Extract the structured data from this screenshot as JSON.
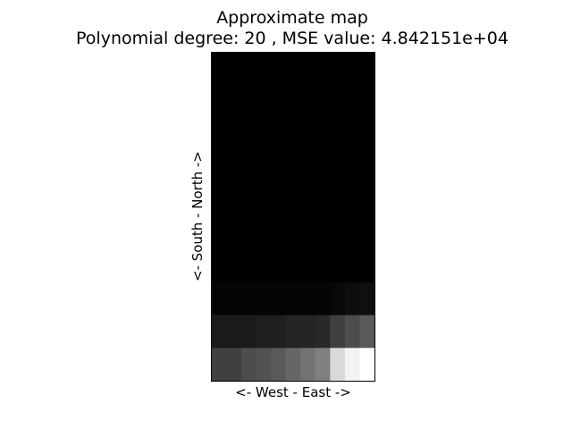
{
  "chart_data": {
    "type": "heatmap",
    "title": "Approximate map",
    "subtitle": "Polynomial degree: 20 , MSE value: 4.842151e+04",
    "xlabel": "<- West - East ->",
    "ylabel": "<- South - North ->",
    "grid": false,
    "legend": "none",
    "colormap": "gray",
    "colors": {
      "low": "#000000",
      "high": "#ffffff"
    },
    "ticks": false,
    "columns": 11,
    "rows": 10,
    "values": [
      [
        0,
        0,
        0,
        0,
        0,
        0,
        0,
        0,
        0,
        0,
        0
      ],
      [
        0,
        0,
        0,
        0,
        0,
        0,
        0,
        0,
        0,
        0,
        0
      ],
      [
        0,
        0,
        0,
        0,
        0,
        0,
        0,
        0,
        0,
        0,
        0
      ],
      [
        0,
        0,
        0,
        0,
        0,
        0,
        0,
        0,
        0,
        0,
        0
      ],
      [
        0,
        0,
        0,
        0,
        0,
        0,
        0,
        0,
        0,
        0,
        0
      ],
      [
        0,
        0,
        0,
        0,
        0,
        0,
        0,
        0,
        0,
        0,
        0
      ],
      [
        0,
        0,
        0,
        0,
        0,
        0,
        0,
        0,
        0,
        0,
        0
      ],
      [
        0.02,
        0.02,
        0.02,
        0.02,
        0.02,
        0.02,
        0.02,
        0.02,
        0.03,
        0.05,
        0.06
      ],
      [
        0.1,
        0.1,
        0.1,
        0.12,
        0.12,
        0.14,
        0.14,
        0.16,
        0.25,
        0.3,
        0.35
      ],
      [
        0.25,
        0.25,
        0.3,
        0.32,
        0.35,
        0.4,
        0.45,
        0.5,
        0.85,
        0.95,
        1.0
      ]
    ]
  }
}
